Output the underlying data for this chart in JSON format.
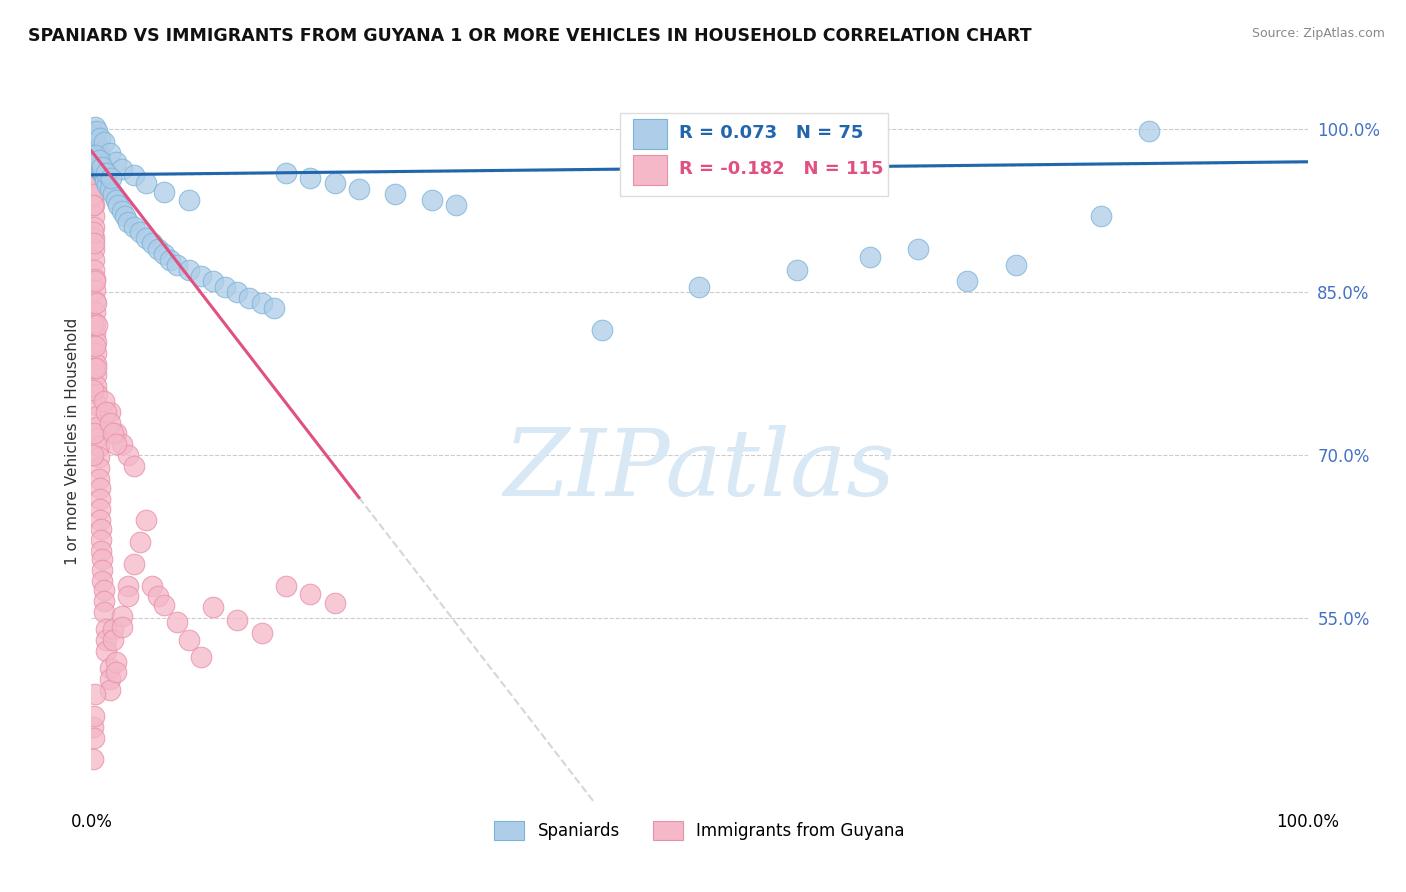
{
  "title": "SPANIARD VS IMMIGRANTS FROM GUYANA 1 OR MORE VEHICLES IN HOUSEHOLD CORRELATION CHART",
  "source": "Source: ZipAtlas.com",
  "ylabel": "1 or more Vehicles in Household",
  "yticks_labels": [
    "100.0%",
    "85.0%",
    "70.0%",
    "55.0%"
  ],
  "yticks_values": [
    1.0,
    0.85,
    0.7,
    0.55
  ],
  "blue_label": "Spaniards",
  "pink_label": "Immigrants from Guyana",
  "blue_R": 0.073,
  "blue_N": 75,
  "pink_R": -0.182,
  "pink_N": 115,
  "blue_fill": "#aecde8",
  "pink_fill": "#f4b8c8",
  "blue_edge": "#7ab3d8",
  "pink_edge": "#e890a8",
  "blue_line_color": "#2166ac",
  "pink_line_color": "#e05080",
  "dash_color": "#cccccc",
  "grid_color": "#cccccc",
  "watermark_color": "#d8e8f5",
  "watermark_text": "ZIPatlas",
  "background_color": "#ffffff",
  "ylim_low": 0.38,
  "ylim_high": 1.045,
  "blue_x": [
    0.003,
    0.004,
    0.005,
    0.006,
    0.007,
    0.008,
    0.009,
    0.01,
    0.011,
    0.012,
    0.003,
    0.004,
    0.005,
    0.006,
    0.007,
    0.008,
    0.009,
    0.01,
    0.011,
    0.013,
    0.015,
    0.018,
    0.02,
    0.022,
    0.025,
    0.028,
    0.03,
    0.035,
    0.04,
    0.045,
    0.05,
    0.055,
    0.06,
    0.065,
    0.07,
    0.08,
    0.09,
    0.1,
    0.11,
    0.12,
    0.13,
    0.14,
    0.15,
    0.16,
    0.18,
    0.2,
    0.22,
    0.25,
    0.28,
    0.3,
    0.003,
    0.005,
    0.007,
    0.01,
    0.015,
    0.02,
    0.025,
    0.035,
    0.045,
    0.06,
    0.08,
    0.42,
    0.5,
    0.58,
    0.64,
    0.68,
    0.72,
    0.76,
    0.83,
    0.87,
    0.003,
    0.006,
    0.009,
    0.012,
    0.016
  ],
  "blue_y": [
    0.975,
    0.98,
    0.985,
    0.97,
    0.968,
    0.965,
    0.96,
    0.958,
    0.955,
    0.952,
    0.995,
    0.988,
    0.982,
    0.978,
    0.972,
    0.966,
    0.961,
    0.957,
    0.953,
    0.949,
    0.945,
    0.94,
    0.935,
    0.93,
    0.925,
    0.92,
    0.915,
    0.91,
    0.905,
    0.9,
    0.895,
    0.89,
    0.885,
    0.88,
    0.875,
    0.87,
    0.865,
    0.86,
    0.855,
    0.85,
    0.845,
    0.84,
    0.835,
    0.96,
    0.955,
    0.95,
    0.945,
    0.94,
    0.935,
    0.93,
    1.002,
    0.998,
    0.992,
    0.988,
    0.978,
    0.97,
    0.963,
    0.958,
    0.95,
    0.942,
    0.935,
    0.815,
    0.855,
    0.87,
    0.882,
    0.89,
    0.86,
    0.875,
    0.92,
    0.998,
    0.976,
    0.972,
    0.965,
    0.96,
    0.955
  ],
  "pink_x": [
    0.001,
    0.001,
    0.001,
    0.001,
    0.001,
    0.001,
    0.001,
    0.002,
    0.002,
    0.002,
    0.002,
    0.002,
    0.002,
    0.002,
    0.003,
    0.003,
    0.003,
    0.003,
    0.003,
    0.003,
    0.004,
    0.004,
    0.004,
    0.004,
    0.004,
    0.005,
    0.005,
    0.005,
    0.005,
    0.005,
    0.006,
    0.006,
    0.006,
    0.006,
    0.007,
    0.007,
    0.007,
    0.007,
    0.008,
    0.008,
    0.008,
    0.009,
    0.009,
    0.009,
    0.01,
    0.01,
    0.01,
    0.012,
    0.012,
    0.012,
    0.015,
    0.015,
    0.015,
    0.018,
    0.018,
    0.02,
    0.02,
    0.025,
    0.025,
    0.03,
    0.03,
    0.035,
    0.04,
    0.045,
    0.05,
    0.055,
    0.06,
    0.07,
    0.08,
    0.09,
    0.1,
    0.12,
    0.14,
    0.16,
    0.18,
    0.2,
    0.001,
    0.001,
    0.001,
    0.002,
    0.002,
    0.003,
    0.003,
    0.004,
    0.004,
    0.005,
    0.001,
    0.002,
    0.003,
    0.001,
    0.002,
    0.015,
    0.02,
    0.025,
    0.03,
    0.035,
    0.001,
    0.001,
    0.002,
    0.002,
    0.003,
    0.01,
    0.012,
    0.015,
    0.018,
    0.02,
    0.001,
    0.001,
    0.002,
    0.003,
    0.001
  ],
  "pink_y": [
    0.998,
    0.988,
    0.978,
    0.968,
    0.958,
    0.948,
    0.938,
    0.93,
    0.92,
    0.91,
    0.9,
    0.89,
    0.88,
    0.87,
    0.862,
    0.852,
    0.842,
    0.832,
    0.822,
    0.812,
    0.804,
    0.794,
    0.784,
    0.774,
    0.764,
    0.756,
    0.746,
    0.736,
    0.726,
    0.716,
    0.708,
    0.698,
    0.688,
    0.678,
    0.67,
    0.66,
    0.65,
    0.64,
    0.632,
    0.622,
    0.612,
    0.604,
    0.594,
    0.584,
    0.576,
    0.566,
    0.556,
    0.54,
    0.53,
    0.52,
    0.504,
    0.494,
    0.484,
    0.54,
    0.53,
    0.51,
    0.5,
    0.552,
    0.542,
    0.58,
    0.57,
    0.6,
    0.62,
    0.64,
    0.58,
    0.57,
    0.562,
    0.546,
    0.53,
    0.514,
    0.56,
    0.548,
    0.536,
    0.58,
    0.572,
    0.564,
    0.82,
    0.76,
    0.7,
    0.78,
    0.72,
    0.86,
    0.8,
    0.84,
    0.78,
    0.82,
    0.968,
    0.958,
    0.948,
    0.905,
    0.895,
    0.74,
    0.72,
    0.71,
    0.7,
    0.69,
    0.45,
    0.42,
    0.46,
    0.44,
    0.48,
    0.75,
    0.74,
    0.73,
    0.72,
    0.71,
    0.94,
    0.985,
    0.975,
    0.965,
    0.93
  ]
}
